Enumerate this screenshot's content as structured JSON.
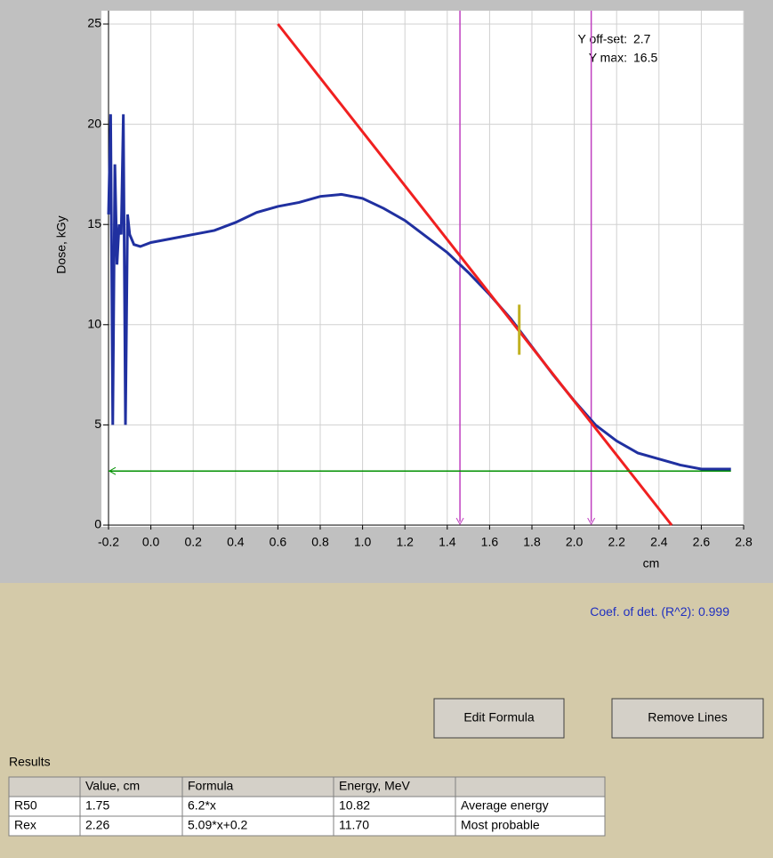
{
  "chart_data": {
    "type": "line",
    "y_label": "Dose, kGy",
    "x_label": "cm",
    "xlim": [
      -0.2,
      2.8
    ],
    "ylim": [
      0,
      25
    ],
    "xticks": [
      -0.2,
      {
        "value": 0,
        "label": "0.0"
      },
      0.2,
      0.4,
      0.6,
      0.8,
      {
        "value": 1,
        "label": "1.0"
      },
      1.2,
      1.4,
      1.6,
      1.8,
      {
        "value": 2,
        "label": "2.0"
      },
      2.2,
      2.4,
      2.6,
      2.8
    ],
    "yticks": [
      0,
      5,
      10,
      15,
      20,
      25
    ],
    "grid": true,
    "series": [
      {
        "color": "#2030a0",
        "x": [
          -0.2,
          -0.19,
          -0.18,
          -0.17,
          -0.16,
          -0.15,
          -0.14,
          -0.13,
          -0.12,
          -0.11,
          -0.1,
          -0.08,
          -0.05,
          0,
          0.1,
          0.2,
          0.3,
          0.4,
          0.5,
          0.6,
          0.7,
          0.8,
          0.9,
          1.0,
          1.1,
          1.2,
          1.3,
          1.4,
          1.5,
          1.6,
          1.7,
          1.8,
          1.9,
          2.0,
          2.1,
          2.2,
          2.3,
          2.4,
          2.5,
          2.6,
          2.7,
          2.74
        ],
        "values": [
          15.5,
          20.5,
          5,
          18,
          13,
          15,
          14.5,
          20.5,
          5,
          15.5,
          14.5,
          14,
          13.9,
          14.1,
          14.3,
          14.5,
          14.7,
          15.1,
          15.6,
          15.9,
          16.1,
          16.4,
          16.5,
          16.3,
          15.8,
          15.2,
          14.4,
          13.6,
          12.6,
          11.5,
          10.3,
          8.9,
          7.5,
          6.2,
          5.0,
          4.2,
          3.6,
          3.3,
          3.0,
          2.8,
          2.8,
          2.8
        ]
      },
      {
        "color": "#f02020",
        "x": [
          0.6,
          2.46
        ],
        "values": [
          25,
          0
        ]
      },
      {
        "color": "#009000",
        "x": [
          -0.2,
          2.74
        ],
        "values": [
          2.7,
          2.7
        ]
      }
    ],
    "markers": {
      "color": "#c040c0",
      "x": [
        1.46,
        2.08
      ]
    },
    "fit_point": {
      "color": "#c0b020",
      "x": 1.74,
      "values": [
        8.5,
        11
      ]
    },
    "y_offset": {
      "label": "Y off-set:",
      "value": "2.7"
    },
    "y_max": {
      "label": "Y max:",
      "value": "16.5"
    }
  },
  "coef": {
    "label": "Coef. of det. (R^2):",
    "value": "0.999"
  },
  "buttons": [
    "Edit Formula",
    "Remove Lines"
  ],
  "results": {
    "title": "Results",
    "header": [
      "Value, cm",
      "Formula",
      "Energy, MeV"
    ],
    "rows": [
      [
        "R50",
        "1.75",
        "6.2*x",
        "10.82",
        "Average energy"
      ],
      [
        "Rex",
        "2.26",
        "5.09*x+0.2",
        "11.70",
        "Most probable"
      ]
    ]
  }
}
